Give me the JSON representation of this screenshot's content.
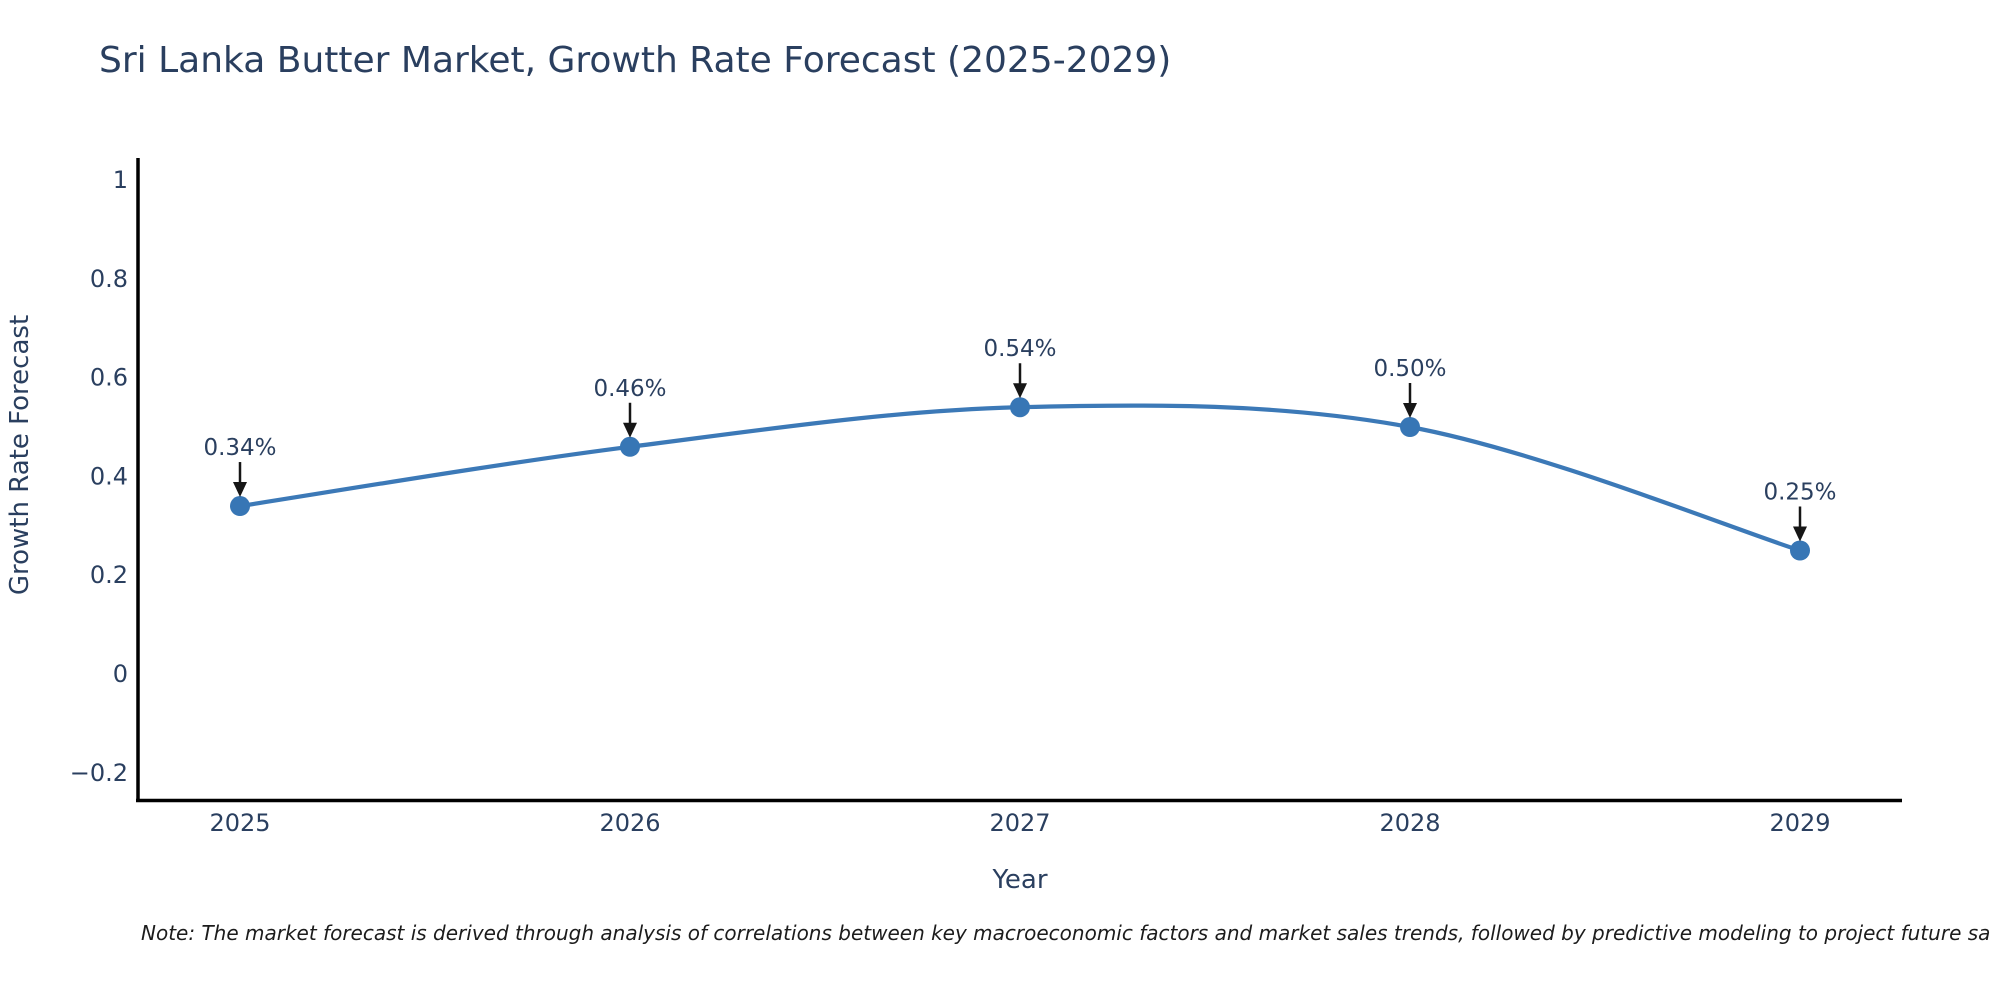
{
  "title": "Sri Lanka Butter Market, Growth Rate Forecast (2025-2029)",
  "note": "Note: The market forecast is derived through analysis of correlations between key macroeconomic factors and market sales trends, followed by predictive modeling to project future sa",
  "chart_data": {
    "type": "line",
    "line_shape": "spline",
    "title": "Sri Lanka Butter Market, Growth Rate Forecast (2025-2029)",
    "xlabel": "Year",
    "ylabel": "Growth Rate Forecast",
    "x": [
      2025,
      2026,
      2027,
      2028,
      2029
    ],
    "categories": [
      "2025",
      "2026",
      "2027",
      "2028",
      "2029"
    ],
    "series": [
      {
        "name": "Growth Rate Forecast",
        "values": [
          0.34,
          0.46,
          0.54,
          0.5,
          0.25
        ]
      }
    ],
    "point_labels": [
      "0.34%",
      "0.46%",
      "0.54%",
      "0.50%",
      "0.25%"
    ],
    "yticks": [
      1,
      0.8,
      0.6,
      0.4,
      0.2,
      0,
      -0.2
    ],
    "ytick_labels": [
      "1",
      "0.8",
      "0.6",
      "0.4",
      "0.2",
      "0",
      "−0.2"
    ],
    "ylim": [
      -0.27,
      1.04
    ],
    "xlim": [
      2024.74,
      2029.26
    ],
    "grid": false,
    "legend": "none",
    "annotations_have_arrows": true,
    "colors": {
      "line": "#3c79b7",
      "marker": "#3776b5",
      "axis": "#000000",
      "tick_text": "#2a3f5f",
      "title_text": "#2a3f5f",
      "annotation_text": "#2a3f5f",
      "arrow": "#161616",
      "note_text": "#1c1c1c",
      "background": "#ffffff"
    }
  }
}
